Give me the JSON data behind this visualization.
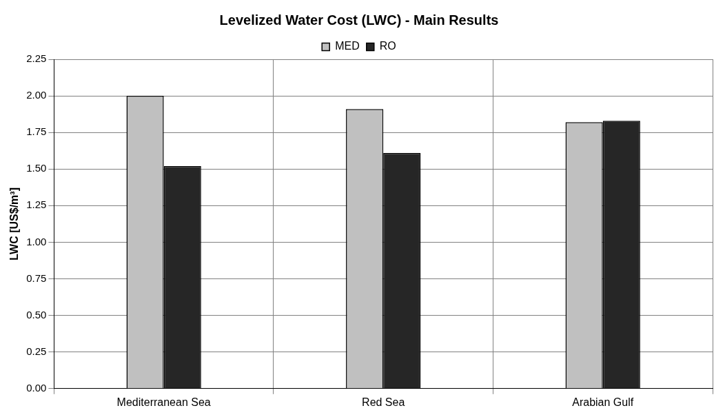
{
  "chart_data": {
    "type": "bar",
    "title": "Levelized Water Cost (LWC) - Main Results",
    "ylabel": "LWC [US$/m³]",
    "categories": [
      "Mediterranean Sea",
      "Red Sea",
      "Arabian Gulf"
    ],
    "series": [
      {
        "name": "MED",
        "color": "#c0c0c0",
        "values": [
          2.0,
          1.91,
          1.82
        ]
      },
      {
        "name": "RO",
        "color": "#262626",
        "values": [
          1.52,
          1.61,
          1.83
        ]
      }
    ],
    "ylim": [
      0,
      2.25
    ],
    "yticks": [
      {
        "value": 0,
        "label": "0.00"
      },
      {
        "value": 0.25,
        "label": "0.25"
      },
      {
        "value": 0.5,
        "label": "0.50"
      },
      {
        "value": 0.75,
        "label": "0.75"
      },
      {
        "value": 1,
        "label": "1.00"
      },
      {
        "value": 1.25,
        "label": "1.25"
      },
      {
        "value": 1.5,
        "label": "1.50"
      },
      {
        "value": 1.75,
        "label": "1.75"
      },
      {
        "value": 2,
        "label": "2.00"
      },
      {
        "value": 2.25,
        "label": "2.25"
      }
    ],
    "grid": true,
    "legend": "top"
  }
}
